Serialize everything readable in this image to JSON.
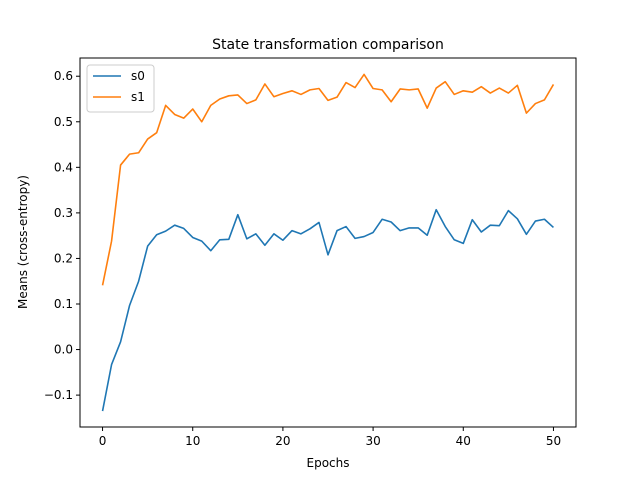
{
  "chart_data": {
    "type": "line",
    "title": "State transformation comparison",
    "xlabel": "Epochs",
    "ylabel": "Means (cross-entropy)",
    "xlim": [
      -2.5,
      52.5
    ],
    "ylim": [
      -0.17,
      0.64
    ],
    "xticks": [
      0,
      10,
      20,
      30,
      40,
      50
    ],
    "yticks": [
      -0.1,
      0.0,
      0.1,
      0.2,
      0.3,
      0.4,
      0.5,
      0.6
    ],
    "xtick_labels": [
      "0",
      "10",
      "20",
      "30",
      "40",
      "50"
    ],
    "ytick_labels": [
      "−0.1",
      "0.0",
      "0.1",
      "0.2",
      "0.3",
      "0.4",
      "0.5",
      "0.6"
    ],
    "grid": false,
    "legend": "top-left",
    "x": [
      0,
      1,
      2,
      3,
      4,
      5,
      6,
      7,
      8,
      9,
      10,
      11,
      12,
      13,
      14,
      15,
      16,
      17,
      18,
      19,
      20,
      21,
      22,
      23,
      24,
      25,
      26,
      27,
      28,
      29,
      30,
      31,
      32,
      33,
      34,
      35,
      36,
      37,
      38,
      39,
      40,
      41,
      42,
      43,
      44,
      45,
      46,
      47,
      48,
      49,
      50
    ],
    "series": [
      {
        "name": "s0",
        "color": "#1f77b4",
        "values": [
          -0.135,
          -0.033,
          0.017,
          0.097,
          0.15,
          0.227,
          0.252,
          0.26,
          0.273,
          0.266,
          0.246,
          0.238,
          0.217,
          0.241,
          0.242,
          0.296,
          0.243,
          0.254,
          0.229,
          0.254,
          0.24,
          0.261,
          0.254,
          0.265,
          0.279,
          0.208,
          0.261,
          0.27,
          0.244,
          0.248,
          0.257,
          0.286,
          0.28,
          0.261,
          0.267,
          0.267,
          0.251,
          0.307,
          0.27,
          0.241,
          0.233,
          0.285,
          0.258,
          0.273,
          0.272,
          0.305,
          0.287,
          0.253,
          0.282,
          0.286,
          0.268
        ]
      },
      {
        "name": "s1",
        "color": "#ff7f0e",
        "values": [
          0.141,
          0.238,
          0.405,
          0.429,
          0.432,
          0.462,
          0.476,
          0.536,
          0.516,
          0.508,
          0.528,
          0.5,
          0.536,
          0.55,
          0.557,
          0.559,
          0.54,
          0.548,
          0.583,
          0.555,
          0.562,
          0.568,
          0.56,
          0.57,
          0.573,
          0.547,
          0.554,
          0.586,
          0.575,
          0.604,
          0.573,
          0.57,
          0.544,
          0.572,
          0.57,
          0.572,
          0.53,
          0.574,
          0.588,
          0.56,
          0.568,
          0.565,
          0.577,
          0.563,
          0.574,
          0.563,
          0.58,
          0.519,
          0.54,
          0.548,
          0.582
        ]
      }
    ]
  }
}
